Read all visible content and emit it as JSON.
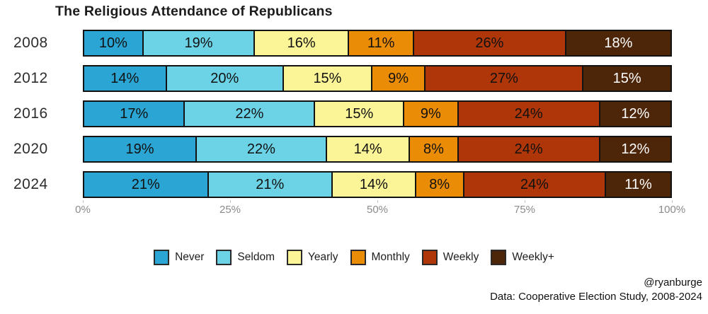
{
  "chart_data": {
    "type": "bar",
    "stacked": true,
    "orientation": "horizontal",
    "title": "The Religious Attendance of Republicans",
    "categories": [
      "2008",
      "2012",
      "2016",
      "2020",
      "2024"
    ],
    "series": [
      {
        "name": "Never",
        "color": "#2BA6D4",
        "text_color": "#111111",
        "values": [
          10,
          14,
          17,
          19,
          21
        ]
      },
      {
        "name": "Seldom",
        "color": "#6CD3E7",
        "text_color": "#111111",
        "values": [
          19,
          20,
          22,
          22,
          21
        ]
      },
      {
        "name": "Yearly",
        "color": "#FBF598",
        "text_color": "#111111",
        "values": [
          16,
          15,
          15,
          14,
          14
        ]
      },
      {
        "name": "Monthly",
        "color": "#EB8C06",
        "text_color": "#111111",
        "values": [
          11,
          9,
          9,
          8,
          8
        ]
      },
      {
        "name": "Weekly",
        "color": "#AE3608",
        "text_color": "#111111",
        "values": [
          26,
          27,
          24,
          24,
          24
        ]
      },
      {
        "name": "Weekly+",
        "color": "#4D2508",
        "text_color": "#FFFFFF",
        "values": [
          18,
          15,
          12,
          12,
          11
        ]
      }
    ],
    "value_suffix": "%",
    "x_ticks": [
      "0%",
      "25%",
      "50%",
      "75%",
      "100%"
    ],
    "xlim": [
      0,
      100
    ],
    "legend_position": "bottom",
    "grid": false
  },
  "footer": {
    "handle": "@ryanburge",
    "source": "Data: Cooperative Election Study, 2008-2024"
  }
}
